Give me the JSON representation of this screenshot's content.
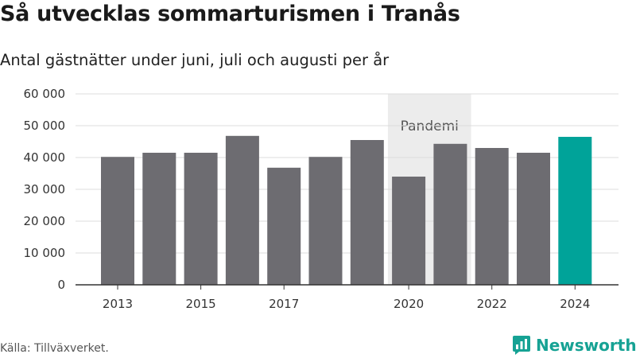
{
  "header": {
    "title": "Så utvecklas sommarturismen i Tranås",
    "subtitle": "Antal gästnätter under juni, juli och augusti per år"
  },
  "footer": {
    "source": "Källa: Tillväxverket.",
    "brand": "Newsworthy"
  },
  "colors": {
    "bar_default": "#6d6c71",
    "bar_highlight": "#00a399",
    "annotation_band": "#ececec",
    "gridline": "#dddddd",
    "brand": "#16a294"
  },
  "chart_data": {
    "type": "bar",
    "categories": [
      "2013",
      "2014",
      "2015",
      "2016",
      "2017",
      "2018",
      "2019",
      "2020",
      "2021",
      "2022",
      "2023",
      "2024"
    ],
    "values": [
      40200,
      41500,
      41500,
      46800,
      36800,
      40200,
      45500,
      34000,
      44300,
      43000,
      41500,
      46500
    ],
    "highlight_category": "2024",
    "title": "Så utvecklas sommarturismen i Tranås",
    "subtitle": "Antal gästnätter under juni, juli och augusti per år",
    "xlabel": "",
    "ylabel": "",
    "ylim": [
      0,
      60000
    ],
    "yticks": [
      0,
      10000,
      20000,
      30000,
      40000,
      50000,
      60000
    ],
    "ytick_labels": [
      "0",
      "10 000",
      "20 000",
      "30 000",
      "40 000",
      "50 000",
      "60 000"
    ],
    "xtick_labels": [
      "2013",
      "2015",
      "2017",
      "2020",
      "2022",
      "2024"
    ],
    "grid": true,
    "legend": "none",
    "annotations": [
      {
        "label": "Pandemi",
        "from": "2020",
        "to": "2021"
      }
    ]
  }
}
